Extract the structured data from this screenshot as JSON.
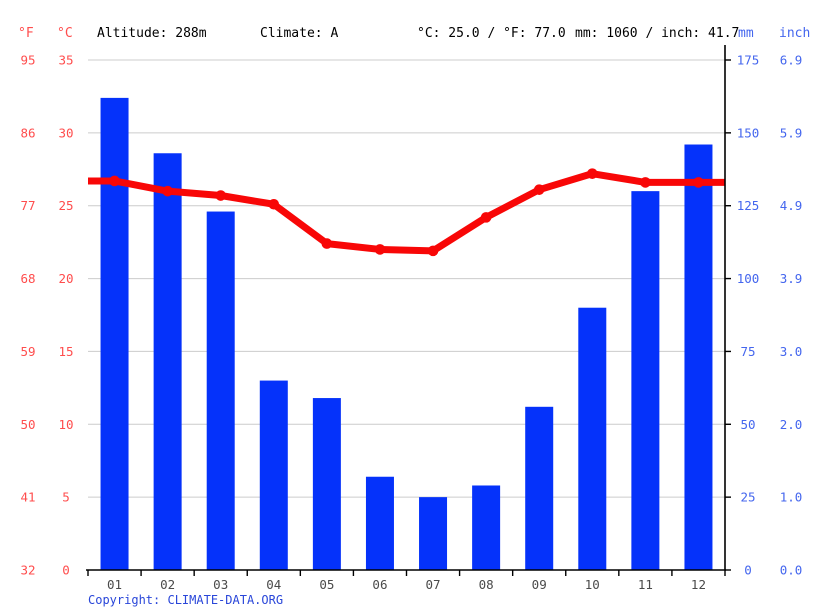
{
  "header": {
    "unit_f": "°F",
    "unit_c": "°C",
    "altitude": "Altitude: 288m",
    "climate": "Climate: A",
    "avg_temp": "°C: 25.0 / °F: 77.0",
    "precip_total": "mm: 1060 / inch: 41.7",
    "unit_mm": "mm",
    "unit_inch": "inch"
  },
  "axes": {
    "left_f": [
      "95",
      "86",
      "77",
      "68",
      "59",
      "50",
      "41",
      "32"
    ],
    "left_c": [
      "35",
      "30",
      "25",
      "20",
      "15",
      "10",
      "5",
      "0"
    ],
    "right_mm": [
      "175",
      "150",
      "125",
      "100",
      "75",
      "50",
      "25",
      "0"
    ],
    "right_inch": [
      "6.9",
      "5.9",
      "4.9",
      "3.9",
      "3.0",
      "2.0",
      "1.0",
      "0.0"
    ]
  },
  "chart_data": {
    "type": "bar+line",
    "title": "",
    "categories": [
      "01",
      "02",
      "03",
      "04",
      "05",
      "06",
      "07",
      "08",
      "09",
      "10",
      "11",
      "12"
    ],
    "series": [
      {
        "name": "precipitation",
        "type": "bar",
        "unit": "mm",
        "axis": "right",
        "range": [
          0,
          175
        ],
        "values": [
          162,
          143,
          123,
          65,
          59,
          32,
          25,
          29,
          56,
          90,
          130,
          146
        ]
      },
      {
        "name": "temperature",
        "type": "line",
        "unit": "°C",
        "axis": "left",
        "range": [
          0,
          35
        ],
        "values": [
          26.7,
          26.0,
          25.7,
          25.1,
          22.4,
          22.0,
          21.9,
          24.2,
          26.1,
          27.2,
          26.6,
          26.6
        ]
      }
    ],
    "grid": true,
    "legend": "none"
  },
  "colors": {
    "bar_blue": "#0532fa",
    "line_red": "#f80707",
    "left_label_red": "#ff4d4d",
    "right_label_blue": "#4466ee",
    "month_label": "#4a4a4a",
    "grid": "#cccccc",
    "axis": "#000000",
    "copyright_blue": "#2946d9"
  },
  "copyright": {
    "label": "Copyright: ",
    "link": "CLIMATE-DATA.ORG"
  }
}
